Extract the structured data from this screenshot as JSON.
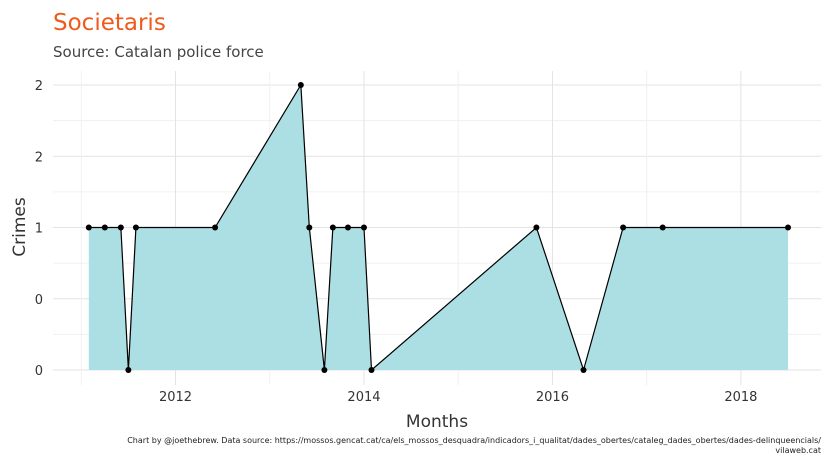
{
  "chart_data": {
    "type": "area",
    "title": "Societaris",
    "subtitle": "Source: Catalan police force",
    "xlabel": "Months",
    "ylabel": "Crimes",
    "caption_line1": "Chart by @joethebrew. Data source: https://mossos.gencat.cat/ca/els_mossos_desquadra/indicadors_i_qualitat/dades_obertes/cataleg_dades_obertes/dades-delinqueencials/",
    "caption_line2": "vilaweb.cat",
    "x_ticks": [
      "2012",
      "2014",
      "2016",
      "2018"
    ],
    "y_ticks": [
      "0",
      "0",
      "1",
      "2",
      "2"
    ],
    "xlim": [
      2010.7,
      2018.85
    ],
    "ylim": [
      0,
      2
    ],
    "grid": true,
    "colors": {
      "fill": "#abdfe4",
      "line": "#000000",
      "title": "#f05a1a"
    },
    "x": [
      2011.08,
      2011.25,
      2011.42,
      2011.5,
      2011.58,
      2012.42,
      2013.33,
      2013.42,
      2013.58,
      2013.67,
      2013.83,
      2014.0,
      2014.08,
      2015.83,
      2016.33,
      2016.75,
      2017.17,
      2018.5
    ],
    "values": [
      1,
      1,
      1,
      0,
      1,
      1,
      2,
      1,
      0,
      1,
      1,
      1,
      0,
      1,
      0,
      1,
      1,
      1
    ]
  }
}
